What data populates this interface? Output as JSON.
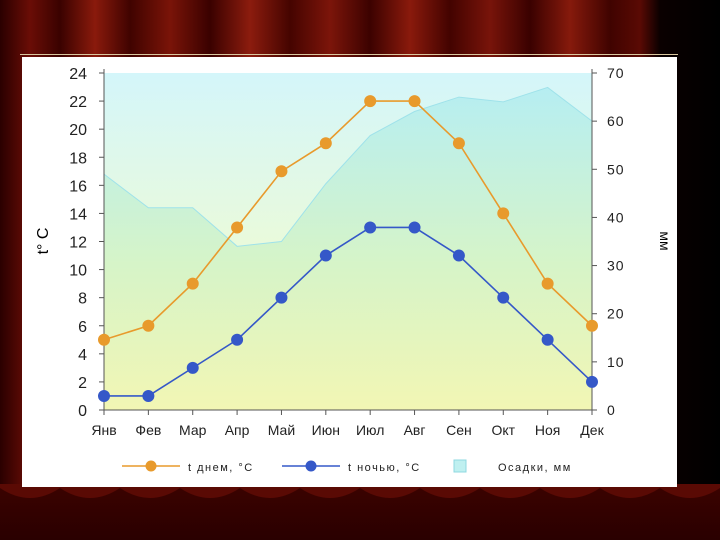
{
  "chart_data": {
    "type": "line",
    "categories": [
      "Янв",
      "Фев",
      "Мар",
      "Апр",
      "Май",
      "Июн",
      "Июл",
      "Авг",
      "Сен",
      "Окт",
      "Ноя",
      "Дек"
    ],
    "ylabel": "t° C",
    "ylim": [
      0,
      24
    ],
    "yticks": [
      "0",
      "2",
      "4",
      "6",
      "8",
      "10",
      "12",
      "14",
      "16",
      "18",
      "20",
      "22",
      "24"
    ],
    "y2label": "мм",
    "y2lim": [
      0,
      70
    ],
    "y2ticks": [
      "0",
      "10",
      "20",
      "30",
      "40",
      "50",
      "60",
      "70"
    ],
    "grid": false,
    "legend_position": "bottom",
    "series": [
      {
        "name": "t днем, °C",
        "type": "line",
        "axis": "left",
        "color": "#e89a2c",
        "values": [
          5,
          6,
          9,
          13,
          17,
          19,
          22,
          22,
          19,
          14,
          9,
          6
        ]
      },
      {
        "name": "t ночью, °C",
        "type": "line",
        "axis": "left",
        "color": "#3558c8",
        "values": [
          1,
          1,
          3,
          5,
          8,
          11,
          13,
          13,
          11,
          8,
          5,
          2
        ]
      },
      {
        "name": "Осадки, мм",
        "type": "area",
        "axis": "right",
        "color": "#bff0f0",
        "values": [
          49,
          42,
          42,
          34,
          35,
          47,
          57,
          62,
          65,
          64,
          67,
          60
        ]
      }
    ]
  }
}
